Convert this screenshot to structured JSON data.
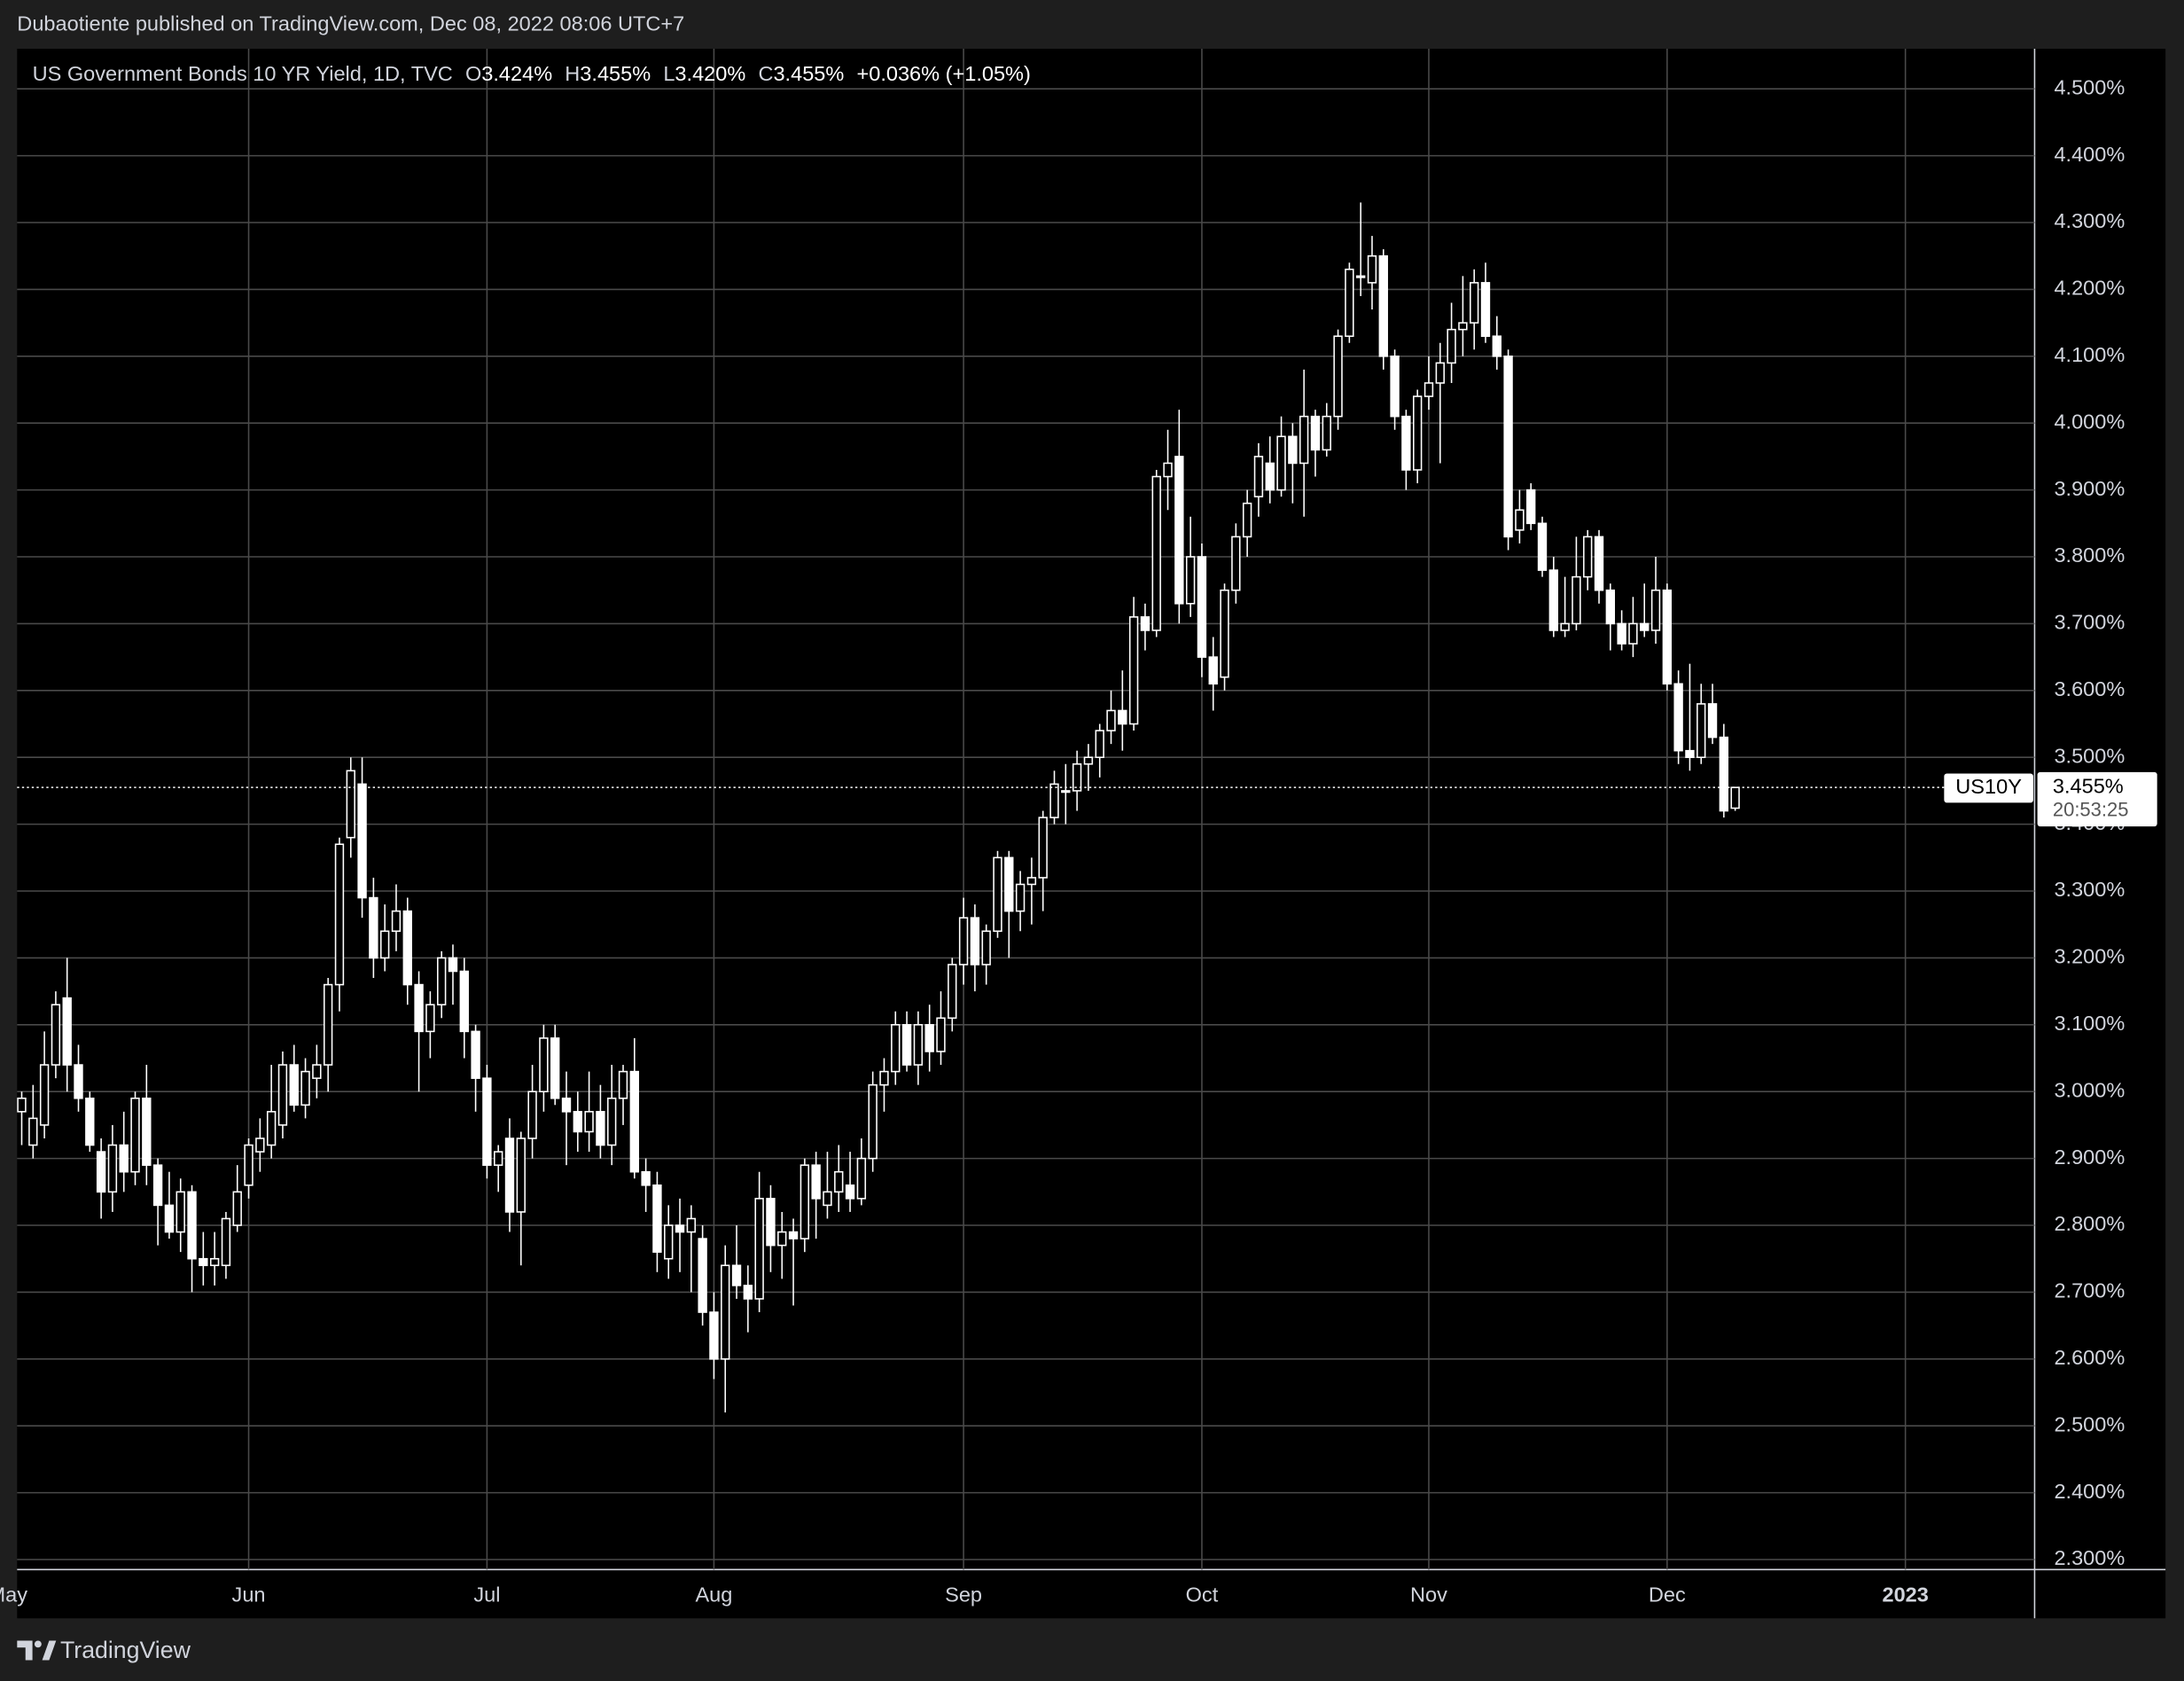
{
  "header": {
    "publisher": "Dubaotiente published on TradingView.com, Dec 08, 2022 08:06 UTC+7"
  },
  "footer": {
    "brand": "TradingView"
  },
  "chart_data": {
    "type": "candlestick",
    "legend": {
      "symbol": "US Government Bonds 10 YR Yield, 1D, TVC",
      "items": [
        {
          "key": "O",
          "value": "3.424%"
        },
        {
          "key": "H",
          "value": "3.455%"
        },
        {
          "key": "L",
          "value": "3.420%"
        },
        {
          "key": "C",
          "value": "3.455%"
        }
      ],
      "change": "+0.036% (+1.05%)"
    },
    "last_price": {
      "symbol": "US10Y",
      "value_label": "3.455%",
      "countdown": "20:53:25"
    },
    "color": "#ffffff",
    "grid": true,
    "ylim": [
      2.285,
      4.56
    ],
    "yticks": [
      {
        "value": 4.5,
        "label": "4.500%"
      },
      {
        "value": 4.4,
        "label": "4.400%"
      },
      {
        "value": 4.3,
        "label": "4.300%"
      },
      {
        "value": 4.2,
        "label": "4.200%"
      },
      {
        "value": 4.1,
        "label": "4.100%"
      },
      {
        "value": 4.0,
        "label": "4.000%"
      },
      {
        "value": 3.9,
        "label": "3.900%"
      },
      {
        "value": 3.8,
        "label": "3.800%"
      },
      {
        "value": 3.7,
        "label": "3.700%"
      },
      {
        "value": 3.6,
        "label": "3.600%"
      },
      {
        "value": 3.5,
        "label": "3.500%"
      },
      {
        "value": 3.4,
        "label": "3.400%"
      },
      {
        "value": 3.3,
        "label": "3.300%"
      },
      {
        "value": 3.2,
        "label": "3.200%"
      },
      {
        "value": 3.1,
        "label": "3.100%"
      },
      {
        "value": 3.0,
        "label": "3.000%"
      },
      {
        "value": 2.9,
        "label": "2.900%"
      },
      {
        "value": 2.8,
        "label": "2.800%"
      },
      {
        "value": 2.7,
        "label": "2.700%"
      },
      {
        "value": 2.6,
        "label": "2.600%"
      },
      {
        "value": 2.5,
        "label": "2.500%"
      },
      {
        "value": 2.4,
        "label": "2.400%"
      },
      {
        "value": 2.3,
        "label": "2.300%"
      }
    ],
    "categories": [
      "May",
      null,
      null,
      null,
      null,
      null,
      null,
      null,
      null,
      null,
      null,
      null,
      null,
      null,
      null,
      null,
      null,
      null,
      null,
      null,
      "Jun",
      null,
      null,
      null,
      null,
      null,
      null,
      null,
      null,
      null,
      null,
      null,
      null,
      null,
      null,
      null,
      null,
      null,
      null,
      null,
      null,
      "Jul",
      null,
      null,
      null,
      null,
      null,
      null,
      null,
      null,
      null,
      null,
      null,
      null,
      null,
      null,
      null,
      null,
      null,
      null,
      null,
      "Aug",
      null,
      null,
      null,
      null,
      null,
      null,
      null,
      null,
      null,
      null,
      null,
      null,
      null,
      null,
      null,
      null,
      null,
      null,
      null,
      null,
      null,
      "Sep",
      null,
      null,
      null,
      null,
      null,
      null,
      null,
      null,
      null,
      null,
      null,
      null,
      null,
      null,
      null,
      null,
      null,
      null,
      null,
      null,
      "Oct",
      null,
      null,
      null,
      null,
      null,
      null,
      null,
      null,
      null,
      null,
      null,
      null,
      null,
      null,
      null,
      null,
      null,
      null,
      null,
      "Nov",
      null,
      null,
      null,
      null,
      null,
      null,
      null,
      null,
      null,
      null,
      null,
      null,
      null,
      null,
      null,
      null,
      null,
      null,
      null,
      null,
      "Dec",
      null,
      null,
      null,
      null,
      null,
      null,
      null,
      null,
      null,
      null,
      null,
      null,
      null,
      null,
      null,
      null,
      null,
      null,
      null,
      null,
      "2023"
    ],
    "open": [
      2.97,
      2.92,
      2.95,
      3.04,
      3.14,
      3.04,
      2.99,
      2.91,
      2.85,
      2.92,
      2.88,
      2.99,
      2.89,
      2.83,
      2.79,
      2.85,
      2.75,
      2.74,
      2.74,
      2.8,
      2.86,
      2.91,
      2.92,
      2.95,
      3.04,
      2.98,
      3.02,
      3.04,
      3.16,
      3.38,
      3.46,
      3.29,
      3.2,
      3.24,
      3.27,
      3.16,
      3.09,
      3.13,
      3.2,
      3.18,
      3.09,
      3.02,
      2.89,
      2.93,
      2.82,
      2.93,
      3.0,
      3.08,
      2.99,
      2.97,
      2.94,
      2.97,
      2.92,
      2.99,
      3.03,
      2.88,
      2.86,
      2.75,
      2.8,
      2.79,
      2.78,
      2.67,
      2.6,
      2.74,
      2.71,
      2.69,
      2.84,
      2.77,
      2.79,
      2.78,
      2.89,
      2.83,
      2.85,
      2.86,
      2.84,
      2.9,
      3.01,
      3.03,
      3.1,
      3.04,
      3.1,
      3.06,
      3.11,
      3.19,
      3.26,
      3.19,
      3.24,
      3.35,
      3.27,
      3.31,
      3.32,
      3.41,
      3.45,
      3.45,
      3.49,
      3.5,
      3.54,
      3.57,
      3.55,
      3.71,
      3.69,
      3.92,
      3.95,
      3.73,
      3.8,
      3.65,
      3.62,
      3.75,
      3.83,
      3.89,
      3.94,
      3.9,
      3.98,
      3.94,
      4.01,
      3.96,
      4.01,
      4.13,
      4.22,
      4.21,
      4.25,
      4.1,
      4.01,
      3.93,
      4.04,
      4.06,
      4.09,
      4.14,
      4.15,
      4.21,
      4.13,
      4.1,
      3.84,
      3.9,
      3.85,
      3.78,
      3.69,
      3.7,
      3.77,
      3.83,
      3.75,
      3.7,
      3.67,
      3.7,
      3.69,
      3.75,
      3.61,
      3.51,
      3.5,
      3.58,
      3.53,
      3.424,
      null,
      null,
      null,
      null,
      null,
      null,
      null,
      null,
      null,
      null,
      null,
      null,
      null,
      null,
      null
    ],
    "high": [
      3.0,
      3.01,
      3.09,
      3.15,
      3.2,
      3.07,
      3.0,
      2.93,
      2.95,
      2.97,
      3.0,
      3.04,
      2.9,
      2.88,
      2.87,
      2.86,
      2.79,
      2.79,
      2.82,
      2.89,
      2.93,
      2.96,
      3.04,
      3.06,
      3.07,
      3.05,
      3.07,
      3.17,
      3.38,
      3.5,
      3.5,
      3.32,
      3.28,
      3.31,
      3.29,
      3.18,
      3.15,
      3.21,
      3.22,
      3.2,
      3.1,
      3.04,
      2.92,
      2.96,
      2.94,
      3.04,
      3.1,
      3.1,
      3.03,
      3.0,
      3.03,
      3.01,
      3.04,
      3.04,
      3.08,
      2.9,
      2.88,
      2.83,
      2.84,
      2.83,
      2.8,
      2.7,
      2.77,
      2.8,
      2.74,
      2.88,
      2.86,
      2.82,
      2.81,
      2.9,
      2.91,
      2.91,
      2.92,
      2.91,
      2.93,
      3.03,
      3.05,
      3.12,
      3.12,
      3.12,
      3.13,
      3.15,
      3.2,
      3.29,
      3.28,
      3.25,
      3.36,
      3.36,
      3.33,
      3.35,
      3.42,
      3.48,
      3.49,
      3.51,
      3.52,
      3.55,
      3.6,
      3.63,
      3.74,
      3.73,
      3.93,
      3.99,
      4.02,
      3.86,
      3.82,
      3.68,
      3.76,
      3.85,
      3.9,
      3.97,
      3.98,
      4.01,
      4.0,
      4.08,
      4.02,
      4.03,
      4.14,
      4.24,
      4.33,
      4.28,
      4.26,
      4.11,
      4.02,
      4.05,
      4.1,
      4.12,
      4.18,
      4.22,
      4.23,
      4.24,
      4.16,
      4.11,
      3.9,
      3.91,
      3.86,
      3.8,
      3.77,
      3.83,
      3.84,
      3.84,
      3.76,
      3.72,
      3.74,
      3.76,
      3.8,
      3.76,
      3.63,
      3.64,
      3.61,
      3.61,
      3.55,
      3.455,
      null,
      null,
      null,
      null,
      null,
      null,
      null,
      null,
      null,
      null,
      null,
      null,
      null,
      null,
      null
    ],
    "low": [
      2.92,
      2.9,
      2.93,
      3.02,
      3.0,
      2.97,
      2.91,
      2.81,
      2.82,
      2.85,
      2.86,
      2.86,
      2.77,
      2.78,
      2.76,
      2.7,
      2.71,
      2.71,
      2.72,
      2.79,
      2.84,
      2.88,
      2.9,
      2.93,
      2.97,
      2.96,
      2.99,
      3.0,
      3.12,
      3.35,
      3.26,
      3.17,
      3.18,
      3.21,
      3.13,
      3.0,
      3.05,
      3.11,
      3.13,
      3.05,
      2.97,
      2.87,
      2.85,
      2.79,
      2.74,
      2.9,
      2.97,
      2.98,
      2.89,
      2.91,
      2.91,
      2.9,
      2.89,
      2.95,
      2.87,
      2.82,
      2.73,
      2.72,
      2.73,
      2.7,
      2.65,
      2.57,
      2.52,
      2.69,
      2.64,
      2.67,
      2.73,
      2.72,
      2.68,
      2.76,
      2.78,
      2.81,
      2.82,
      2.82,
      2.83,
      2.88,
      2.97,
      3.01,
      3.03,
      3.01,
      3.03,
      3.04,
      3.09,
      3.16,
      3.15,
      3.16,
      3.23,
      3.2,
      3.24,
      3.25,
      3.27,
      3.4,
      3.4,
      3.42,
      3.45,
      3.47,
      3.52,
      3.51,
      3.54,
      3.66,
      3.68,
      3.87,
      3.7,
      3.71,
      3.62,
      3.57,
      3.6,
      3.73,
      3.8,
      3.86,
      3.88,
      3.89,
      3.88,
      3.86,
      3.92,
      3.95,
      3.99,
      4.12,
      4.19,
      4.17,
      4.08,
      3.99,
      3.9,
      3.91,
      4.02,
      3.94,
      4.06,
      4.1,
      4.11,
      4.12,
      4.08,
      3.81,
      3.82,
      3.84,
      3.77,
      3.68,
      3.68,
      3.69,
      3.75,
      3.73,
      3.66,
      3.66,
      3.65,
      3.68,
      3.67,
      3.6,
      3.49,
      3.48,
      3.49,
      3.52,
      3.41,
      3.42,
      null,
      null,
      null,
      null,
      null,
      null,
      null,
      null,
      null,
      null,
      null,
      null,
      null,
      null,
      null
    ],
    "close": [
      2.99,
      2.96,
      3.04,
      3.13,
      3.04,
      2.99,
      2.92,
      2.85,
      2.92,
      2.88,
      2.99,
      2.89,
      2.83,
      2.79,
      2.85,
      2.75,
      2.74,
      2.75,
      2.81,
      2.85,
      2.92,
      2.93,
      2.97,
      3.04,
      2.98,
      3.03,
      3.04,
      3.16,
      3.37,
      3.48,
      3.29,
      3.2,
      3.24,
      3.27,
      3.16,
      3.09,
      3.13,
      3.2,
      3.18,
      3.09,
      3.02,
      2.89,
      2.91,
      2.82,
      2.93,
      3.0,
      3.08,
      2.99,
      2.97,
      2.94,
      2.97,
      2.92,
      2.99,
      3.03,
      2.88,
      2.86,
      2.76,
      2.8,
      2.79,
      2.81,
      2.67,
      2.6,
      2.74,
      2.71,
      2.69,
      2.84,
      2.77,
      2.79,
      2.78,
      2.89,
      2.84,
      2.85,
      2.88,
      2.84,
      2.9,
      3.01,
      3.03,
      3.1,
      3.04,
      3.1,
      3.06,
      3.11,
      3.19,
      3.26,
      3.19,
      3.24,
      3.35,
      3.27,
      3.31,
      3.32,
      3.41,
      3.46,
      3.45,
      3.49,
      3.5,
      3.54,
      3.57,
      3.55,
      3.71,
      3.69,
      3.92,
      3.94,
      3.73,
      3.8,
      3.65,
      3.61,
      3.75,
      3.83,
      3.88,
      3.95,
      3.9,
      3.98,
      3.94,
      4.01,
      3.96,
      4.01,
      4.13,
      4.23,
      4.22,
      4.25,
      4.1,
      4.01,
      3.93,
      4.04,
      4.06,
      4.09,
      4.14,
      4.15,
      4.21,
      4.13,
      4.1,
      3.83,
      3.87,
      3.85,
      3.78,
      3.69,
      3.7,
      3.77,
      3.83,
      3.75,
      3.7,
      3.67,
      3.7,
      3.69,
      3.75,
      3.61,
      3.51,
      3.5,
      3.58,
      3.53,
      3.42,
      3.455,
      null,
      null,
      null,
      null,
      null,
      null,
      null,
      null,
      null,
      null,
      null,
      null,
      null,
      null,
      null
    ]
  }
}
